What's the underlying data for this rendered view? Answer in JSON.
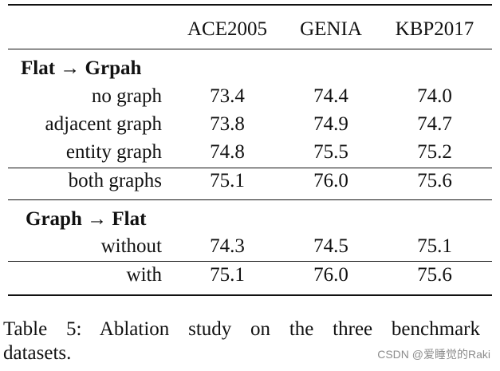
{
  "table": {
    "columns": [
      "",
      "ACE2005",
      "GENIA",
      "KBP2017"
    ],
    "sections": [
      {
        "title": "Flat → Grpah",
        "rows": [
          {
            "label": "no graph",
            "values": [
              "73.4",
              "74.4",
              "74.0"
            ]
          },
          {
            "label": "adjacent graph",
            "values": [
              "73.8",
              "74.9",
              "74.7"
            ]
          },
          {
            "label": "entity graph",
            "values": [
              "74.8",
              "75.5",
              "75.2"
            ]
          },
          {
            "label": "both graphs",
            "values": [
              "75.1",
              "76.0",
              "75.6"
            ]
          }
        ]
      },
      {
        "title": "Graph → Flat",
        "rows": [
          {
            "label": "without",
            "values": [
              "74.3",
              "74.5",
              "75.1"
            ]
          },
          {
            "label": "with",
            "values": [
              "75.1",
              "76.0",
              "75.6"
            ]
          }
        ]
      }
    ]
  },
  "caption": {
    "line1": "Table 5:  Ablation study on the three benchmark",
    "line2": "datasets."
  },
  "watermark": "CSDN @爱睡觉的Raki"
}
